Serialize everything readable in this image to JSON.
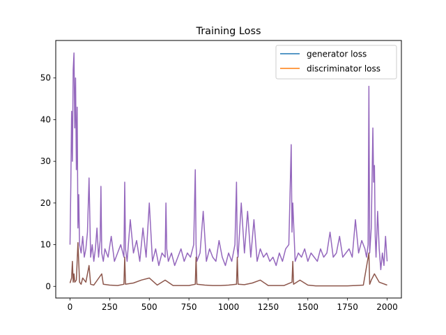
{
  "chart_data": {
    "type": "line",
    "title": "Training Loss",
    "xlabel": "",
    "ylabel": "",
    "xlim": [
      -90,
      2090
    ],
    "ylim": [
      -2.8,
      59
    ],
    "xticks": [
      0,
      250,
      500,
      750,
      1000,
      1250,
      1500,
      1750,
      2000
    ],
    "yticks": [
      0,
      10,
      20,
      30,
      40,
      50
    ],
    "grid": false,
    "legend_position": "top-right",
    "legend": [
      {
        "name": "generator loss",
        "color": "#1f77b4"
      },
      {
        "name": "discriminator loss",
        "color": "#ff7f0e"
      }
    ],
    "series": [
      {
        "name": "generator loss (visible)",
        "color": "#9467bd",
        "x": [
          0,
          5,
          10,
          15,
          20,
          25,
          30,
          35,
          40,
          45,
          50,
          55,
          60,
          70,
          80,
          90,
          100,
          110,
          120,
          130,
          140,
          150,
          160,
          170,
          180,
          190,
          195,
          200,
          210,
          220,
          240,
          260,
          280,
          300,
          320,
          340,
          345,
          350,
          360,
          380,
          400,
          420,
          440,
          460,
          480,
          500,
          520,
          540,
          560,
          580,
          600,
          605,
          610,
          620,
          640,
          660,
          680,
          700,
          720,
          740,
          760,
          780,
          790,
          795,
          800,
          820,
          840,
          860,
          880,
          900,
          920,
          940,
          960,
          980,
          1000,
          1020,
          1040,
          1050,
          1055,
          1060,
          1080,
          1100,
          1120,
          1140,
          1160,
          1180,
          1200,
          1220,
          1240,
          1260,
          1280,
          1300,
          1320,
          1340,
          1360,
          1380,
          1395,
          1400,
          1405,
          1420,
          1440,
          1460,
          1480,
          1500,
          1520,
          1540,
          1560,
          1580,
          1600,
          1620,
          1640,
          1660,
          1680,
          1700,
          1720,
          1740,
          1760,
          1780,
          1800,
          1820,
          1840,
          1860,
          1870,
          1880,
          1885,
          1890,
          1900,
          1910,
          1915,
          1920,
          1925,
          1930,
          1940,
          1950,
          1960,
          1970,
          1980,
          1990,
          2000
        ],
        "y": [
          10,
          24,
          42,
          30,
          52,
          56,
          38,
          50,
          28,
          43,
          14,
          22,
          10,
          8,
          12,
          7,
          9,
          13,
          26,
          7,
          10,
          6,
          9,
          14,
          7,
          11,
          24,
          8,
          6,
          9,
          7,
          12,
          6,
          8,
          10,
          7,
          25,
          9,
          6,
          16,
          8,
          11,
          6,
          14,
          7,
          20,
          6,
          9,
          5,
          8,
          7,
          20,
          9,
          6,
          8,
          5,
          7,
          9,
          6,
          8,
          7,
          10,
          28,
          10,
          6,
          8,
          18,
          6,
          9,
          7,
          6,
          11,
          7,
          5,
          8,
          6,
          10,
          25,
          9,
          7,
          20,
          8,
          18,
          7,
          16,
          6,
          9,
          7,
          8,
          6,
          7,
          5,
          8,
          6,
          9,
          10,
          34,
          13,
          20,
          6,
          8,
          7,
          9,
          6,
          8,
          7,
          6,
          9,
          7,
          8,
          13,
          7,
          8,
          12,
          7,
          8,
          9,
          7,
          16,
          8,
          11,
          9,
          7,
          10,
          48,
          8,
          14,
          38,
          25,
          29,
          12,
          7,
          18,
          9,
          4,
          8,
          5,
          12,
          6
        ]
      },
      {
        "name": "discriminator loss (visible)",
        "color": "#8c564b",
        "x": [
          0,
          10,
          15,
          20,
          25,
          30,
          40,
          50,
          60,
          70,
          80,
          100,
          120,
          130,
          150,
          200,
          210,
          250,
          300,
          340,
          345,
          350,
          400,
          450,
          500,
          550,
          600,
          650,
          700,
          750,
          790,
          795,
          800,
          850,
          900,
          950,
          1000,
          1050,
          1055,
          1060,
          1100,
          1150,
          1200,
          1250,
          1300,
          1350,
          1400,
          1405,
          1410,
          1450,
          1500,
          1550,
          1600,
          1650,
          1700,
          1750,
          1800,
          1850,
          1885,
          1890,
          1900,
          1920,
          1950,
          2000
        ],
        "y": [
          0.8,
          2,
          6,
          1,
          3,
          1,
          1.5,
          10.5,
          1,
          0.5,
          2,
          1,
          5,
          0.5,
          0.3,
          3,
          0.5,
          0.3,
          0.2,
          0.5,
          7,
          0.5,
          0.8,
          1.5,
          2,
          0.3,
          1.5,
          0.2,
          0.2,
          0.2,
          0.5,
          7,
          0.5,
          0.3,
          0.2,
          0.2,
          0.3,
          0.5,
          7,
          0.5,
          0.4,
          0.8,
          1.5,
          0.2,
          0.2,
          0.2,
          1,
          6,
          0.5,
          1.5,
          0.3,
          0.1,
          0.1,
          0.1,
          0.1,
          0.1,
          0.2,
          0.3,
          8,
          0.5,
          1.5,
          3,
          1,
          0.3
        ]
      }
    ]
  }
}
